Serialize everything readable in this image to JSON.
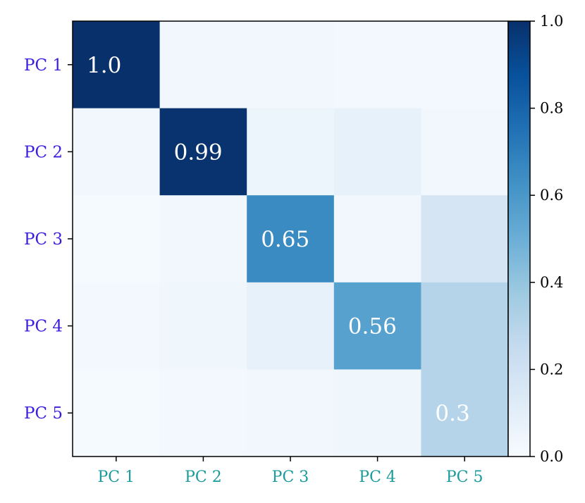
{
  "chart_data": {
    "type": "heatmap",
    "title": "",
    "xlabel": "",
    "ylabel": "",
    "x_categories": [
      "PC 1",
      "PC 2",
      "PC 3",
      "PC 4",
      "PC 5"
    ],
    "y_categories": [
      "PC 1",
      "PC 2",
      "PC 3",
      "PC 4",
      "PC 5"
    ],
    "values": [
      [
        1.0,
        0.03,
        0.03,
        0.02,
        0.02
      ],
      [
        0.03,
        0.99,
        0.05,
        0.08,
        0.03
      ],
      [
        0.01,
        0.03,
        0.65,
        0.03,
        0.17
      ],
      [
        0.02,
        0.04,
        0.08,
        0.56,
        0.3
      ],
      [
        0.01,
        0.02,
        0.03,
        0.04,
        0.3
      ]
    ],
    "cell_labels": [
      [
        "1.0",
        "",
        "",
        "",
        ""
      ],
      [
        "",
        "0.99",
        "",
        "",
        ""
      ],
      [
        "",
        "",
        "0.65",
        "",
        ""
      ],
      [
        "",
        "",
        "",
        "0.56",
        ""
      ],
      [
        "",
        "",
        "",
        "",
        "0.3"
      ]
    ],
    "colorbar": {
      "range": [
        0.0,
        1.0
      ],
      "ticks": [
        0.0,
        0.2,
        0.4,
        0.6,
        0.8,
        1.0
      ],
      "tick_labels": [
        "0.0",
        "0.2",
        "0.4",
        "0.6",
        "0.8",
        "1.0"
      ],
      "colormap": "Blues"
    },
    "colors": {
      "x_tick_labels": "#1a9a9a",
      "y_tick_labels": "#3a1ee0",
      "cell_text": "#ffffff"
    },
    "grid": false
  }
}
